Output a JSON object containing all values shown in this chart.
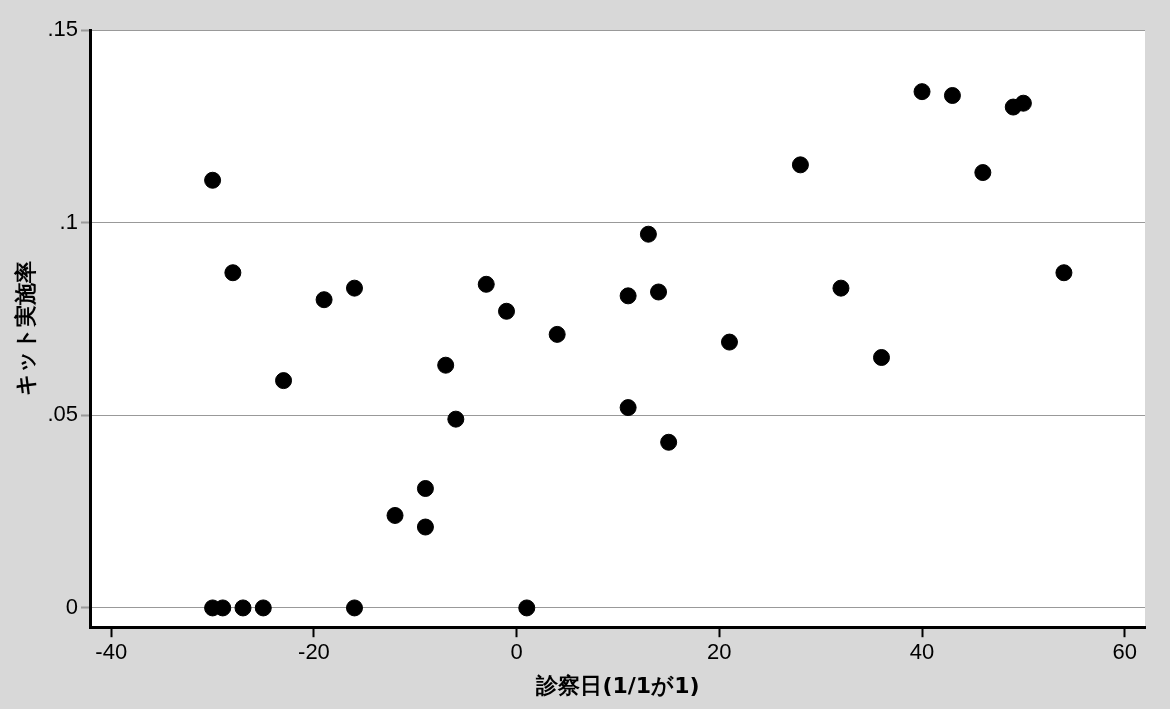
{
  "chart_data": {
    "type": "scatter",
    "xlabel": "診察日(1/1が1)",
    "ylabel": "キット実施率",
    "x": [
      -30,
      -28,
      -23,
      -19,
      -16,
      -7,
      -6,
      -3,
      -1,
      4,
      -12,
      -9,
      -9,
      -30,
      -29,
      -27,
      -25,
      -16,
      1,
      11,
      11,
      13,
      14,
      15,
      21,
      28,
      32,
      36,
      40,
      43,
      46,
      49,
      50,
      54
    ],
    "series": [
      {
        "color": "#000000",
        "values": [
          0.111,
          0.087,
          0.059,
          0.08,
          0.083,
          0.063,
          0.049,
          0.084,
          0.077,
          0.071,
          0.024,
          0.031,
          0.021,
          0,
          0,
          0,
          0,
          0,
          0,
          0.052,
          0.081,
          0.097,
          0.082,
          0.043,
          0.069,
          0.115,
          0.083,
          0.065,
          0.134,
          0.133,
          0.113,
          0.13,
          0.131,
          0.087
        ]
      }
    ],
    "xlim": [
      -42,
      62
    ],
    "xticks": [
      -40,
      -20,
      0,
      20,
      40,
      60
    ],
    "ylim": [
      -0.005,
      0.15
    ],
    "yticks": [
      {
        "value": 0,
        "label": "0"
      },
      {
        "value": 0.05,
        "label": ".05"
      },
      {
        "value": 0.1,
        "label": ".1"
      },
      {
        "value": 0.15,
        "label": ".15"
      }
    ],
    "grid": "y",
    "marker": "circle",
    "legend": false
  }
}
